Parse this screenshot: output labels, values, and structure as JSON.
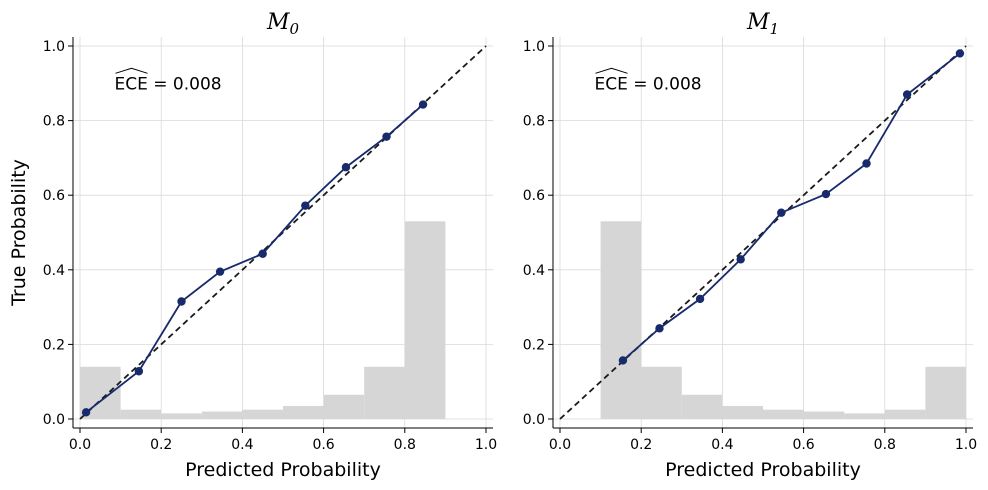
{
  "colors": {
    "calibration": "#172a6b",
    "histogram": "#d6d6d6",
    "diagonal": "#1a1a1a",
    "grid": "#d9d9d9"
  },
  "chart_data": [
    {
      "type": "line",
      "title_main": "M",
      "title_sub": "0",
      "xlabel": "Predicted Probability",
      "ylabel": "True Probability",
      "annotation": "ECE = 0.008",
      "xlim": [
        0,
        1
      ],
      "ylim": [
        0,
        1
      ],
      "grid": true,
      "xticks": [
        "0.0",
        "0.2",
        "0.4",
        "0.6",
        "0.8",
        "1.0"
      ],
      "yticks": [
        "0.0",
        "0.2",
        "0.4",
        "0.6",
        "0.8",
        "1.0"
      ],
      "calibration": {
        "x": [
          0.015,
          0.145,
          0.25,
          0.345,
          0.45,
          0.555,
          0.655,
          0.755,
          0.845
        ],
        "y": [
          0.018,
          0.128,
          0.315,
          0.395,
          0.443,
          0.572,
          0.675,
          0.757,
          0.843
        ]
      },
      "histogram": {
        "bin_edges": [
          0.0,
          0.1,
          0.2,
          0.3,
          0.4,
          0.5,
          0.6,
          0.7,
          0.8,
          0.9
        ],
        "heights": [
          0.14,
          0.025,
          0.015,
          0.02,
          0.025,
          0.035,
          0.065,
          0.14,
          0.53
        ]
      }
    },
    {
      "type": "line",
      "title_main": "M",
      "title_sub": "1",
      "xlabel": "Predicted Probability",
      "ylabel": "",
      "annotation": "ECE = 0.008",
      "xlim": [
        0,
        1
      ],
      "ylim": [
        0,
        1
      ],
      "grid": true,
      "xticks": [
        "0.0",
        "0.2",
        "0.4",
        "0.6",
        "0.8",
        "1.0"
      ],
      "yticks": [
        "0.0",
        "0.2",
        "0.4",
        "0.6",
        "0.8",
        "1.0"
      ],
      "calibration": {
        "x": [
          0.155,
          0.245,
          0.345,
          0.445,
          0.545,
          0.655,
          0.755,
          0.855,
          0.985
        ],
        "y": [
          0.157,
          0.243,
          0.322,
          0.428,
          0.553,
          0.603,
          0.685,
          0.87,
          0.98
        ]
      },
      "histogram": {
        "bin_edges": [
          0.1,
          0.2,
          0.3,
          0.4,
          0.5,
          0.6,
          0.7,
          0.8,
          0.9,
          1.0
        ],
        "heights": [
          0.53,
          0.14,
          0.065,
          0.035,
          0.025,
          0.02,
          0.015,
          0.025,
          0.14
        ]
      }
    }
  ]
}
